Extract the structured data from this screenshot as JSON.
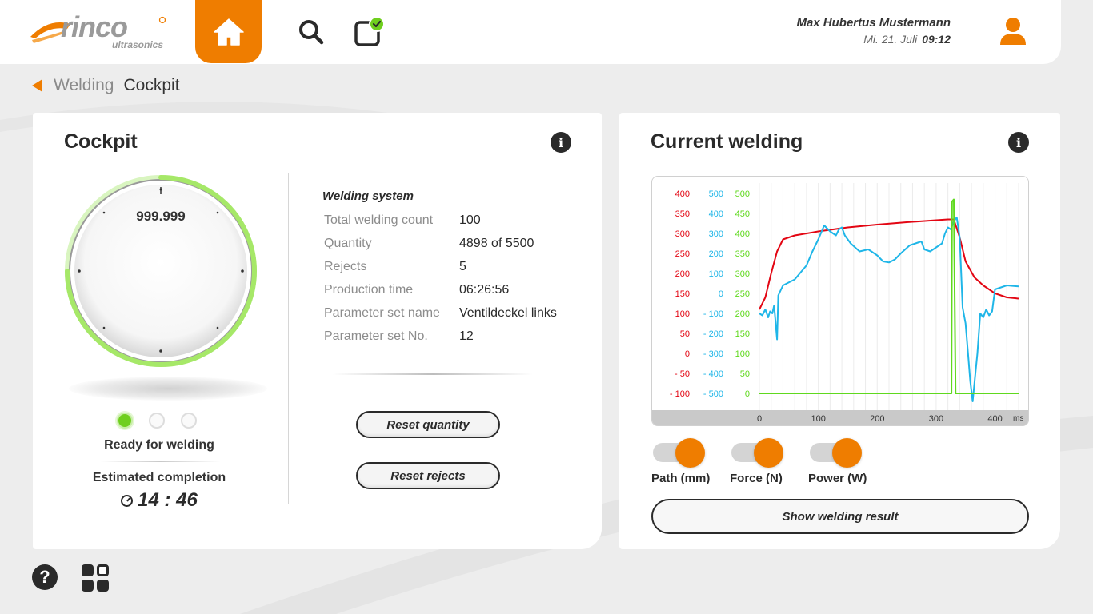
{
  "brand": {
    "name": "rinco",
    "sub": "ultrasonics",
    "accent": "#ef7d00"
  },
  "header": {
    "user_name": "Max Hubertus Mustermann",
    "date": "Mi. 21. Juli",
    "time": "09:12"
  },
  "breadcrumb": {
    "parent": "Welding",
    "current": "Cockpit"
  },
  "cockpit": {
    "title": "Cockpit",
    "gauge_value": "999.999",
    "status_text": "Ready for welding",
    "estimated_label": "Estimated completion",
    "estimated_time": "14 : 46",
    "system_title": "Welding system",
    "rows": [
      {
        "label": "Total welding count",
        "value": "100"
      },
      {
        "label": "Quantity",
        "value": "4898 of 5500"
      },
      {
        "label": "Rejects",
        "value": "5"
      },
      {
        "label": "Production time",
        "value": "06:26:56"
      },
      {
        "label": "Parameter set name",
        "value": "Ventildeckel links"
      },
      {
        "label": "Parameter set No.",
        "value": "12"
      }
    ],
    "reset_quantity_label": "Reset quantity",
    "reset_rejects_label": "Reset rejects"
  },
  "current_welding": {
    "title": "Current welding",
    "toggles": [
      {
        "label": "Path (mm)",
        "on": true
      },
      {
        "label": "Force (N)",
        "on": true
      },
      {
        "label": "Power (W)",
        "on": true
      }
    ],
    "show_result_label": "Show welding result"
  },
  "chart_data": {
    "type": "line",
    "x_unit": "ms",
    "x_ticks": [
      "0",
      "100",
      "200",
      "300",
      "400"
    ],
    "xlim": [
      0,
      440
    ],
    "axes": [
      {
        "color": "#e30613",
        "ticks": [
          "400",
          "350",
          "300",
          "250",
          "200",
          "150",
          "100",
          "50",
          "0",
          "- 50",
          "- 100"
        ],
        "ylim": [
          -100,
          400
        ]
      },
      {
        "color": "#1fb6e8",
        "ticks": [
          "500",
          "400",
          "300",
          "200",
          "100",
          "0",
          "- 100",
          "- 200",
          "- 300",
          "- 400",
          "- 500"
        ],
        "ylim": [
          -500,
          500
        ]
      },
      {
        "color": "#5fd91e",
        "ticks": [
          "500",
          "450",
          "400",
          "350",
          "300",
          "250",
          "200",
          "150",
          "100",
          "50",
          "0"
        ],
        "ylim": [
          0,
          500
        ]
      }
    ],
    "series": [
      {
        "color": "#e30613",
        "axis": 0,
        "points": [
          [
            0,
            110
          ],
          [
            10,
            140
          ],
          [
            20,
            200
          ],
          [
            30,
            255
          ],
          [
            40,
            285
          ],
          [
            60,
            295
          ],
          [
            100,
            305
          ],
          [
            150,
            315
          ],
          [
            200,
            322
          ],
          [
            250,
            328
          ],
          [
            300,
            333
          ],
          [
            320,
            335
          ],
          [
            330,
            335
          ],
          [
            340,
            290
          ],
          [
            350,
            230
          ],
          [
            365,
            190
          ],
          [
            380,
            170
          ],
          [
            400,
            150
          ],
          [
            420,
            140
          ],
          [
            440,
            137
          ]
        ]
      },
      {
        "color": "#1fb6e8",
        "axis": 1,
        "points": [
          [
            0,
            -100
          ],
          [
            5,
            -110
          ],
          [
            10,
            -80
          ],
          [
            15,
            -120
          ],
          [
            18,
            -90
          ],
          [
            22,
            -100
          ],
          [
            25,
            -60
          ],
          [
            30,
            -230
          ],
          [
            32,
            -10
          ],
          [
            40,
            40
          ],
          [
            60,
            70
          ],
          [
            80,
            140
          ],
          [
            90,
            210
          ],
          [
            100,
            270
          ],
          [
            110,
            340
          ],
          [
            120,
            310
          ],
          [
            130,
            290
          ],
          [
            135,
            320
          ],
          [
            140,
            330
          ],
          [
            145,
            290
          ],
          [
            155,
            250
          ],
          [
            170,
            210
          ],
          [
            185,
            220
          ],
          [
            200,
            190
          ],
          [
            210,
            160
          ],
          [
            220,
            155
          ],
          [
            230,
            170
          ],
          [
            240,
            200
          ],
          [
            255,
            240
          ],
          [
            265,
            250
          ],
          [
            275,
            260
          ],
          [
            280,
            220
          ],
          [
            290,
            210
          ],
          [
            300,
            230
          ],
          [
            310,
            250
          ],
          [
            315,
            300
          ],
          [
            320,
            330
          ],
          [
            325,
            320
          ],
          [
            330,
            360
          ],
          [
            335,
            380
          ],
          [
            340,
            280
          ],
          [
            345,
            -70
          ],
          [
            350,
            -150
          ],
          [
            355,
            -330
          ],
          [
            358,
            -440
          ],
          [
            362,
            -540
          ],
          [
            366,
            -420
          ],
          [
            370,
            -300
          ],
          [
            375,
            -100
          ],
          [
            380,
            -120
          ],
          [
            385,
            -80
          ],
          [
            390,
            -110
          ],
          [
            395,
            -90
          ],
          [
            400,
            20
          ],
          [
            410,
            30
          ],
          [
            420,
            40
          ],
          [
            440,
            35
          ]
        ]
      },
      {
        "color": "#5fd91e",
        "axis": 2,
        "points": [
          [
            0,
            0
          ],
          [
            326,
            0
          ],
          [
            327,
            480
          ],
          [
            330,
            485
          ],
          [
            333,
            0
          ],
          [
            440,
            0
          ]
        ]
      }
    ]
  }
}
